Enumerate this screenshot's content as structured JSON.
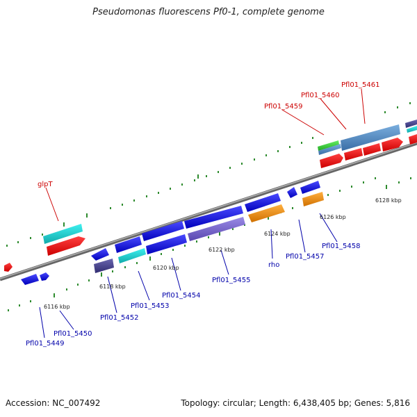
{
  "title": "Pseudomonas fluorescens Pf0-1, complete genome",
  "footer": {
    "accession": "Accession: NC_007492",
    "summary": "Topology: circular; Length: 6,438,405 bp; Genes: 5,816"
  },
  "colors": {
    "forward_label": "#cc0000",
    "reverse_label": "#0000aa",
    "backbone": "#8a8a8a",
    "tick": "#2e8b2e"
  },
  "kbp_labels": [
    "6116 kbp",
    "6118 kbp",
    "6120 kbp",
    "6122 kbp",
    "6124 kbp",
    "6126 kbp",
    "6128 kbp"
  ],
  "forward_gene_labels": [
    "glpT",
    "Pfl01_5459",
    "Pfl01_5460",
    "Pfl01_5461"
  ],
  "reverse_gene_labels": [
    "Pfl01_5449",
    "Pfl01_5450",
    "Pfl01_5452",
    "Pfl01_5453",
    "Pfl01_5454",
    "Pfl01_5455",
    "rho",
    "Pfl01_5457",
    "Pfl01_5458"
  ]
}
